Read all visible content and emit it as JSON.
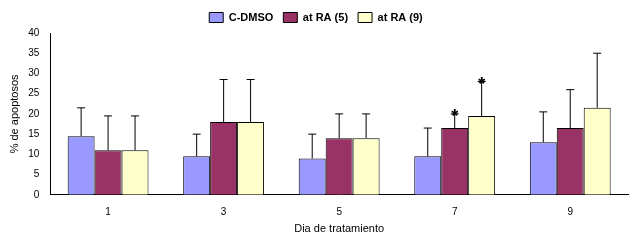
{
  "chart_data": {
    "type": "bar",
    "x_label": "Dia de tratamiento",
    "y_label": "% de apoptosos",
    "categories": [
      "1",
      "3",
      "5",
      "7",
      "9"
    ],
    "series": [
      {
        "name": "C-DMSO",
        "color": "#9999ff",
        "values": [
          14.5,
          9.5,
          9,
          9.5,
          13
        ],
        "errors": [
          7,
          5.5,
          6,
          7,
          7.5
        ]
      },
      {
        "name": "at RA (5)",
        "color": "#993366",
        "values": [
          11,
          18,
          14,
          16.5,
          16.5
        ],
        "errors": [
          8.5,
          10.5,
          6,
          3.5,
          9.5
        ]
      },
      {
        "name": "at RA (9)",
        "color": "#ffffcc",
        "values": [
          11,
          18,
          14,
          19.5,
          21.5
        ],
        "errors": [
          8.5,
          10.5,
          6,
          8.5,
          13.5
        ]
      }
    ],
    "annotations": [
      {
        "text": "*",
        "category": "7",
        "series": "at RA (5)"
      },
      {
        "text": "*",
        "category": "7",
        "series": "at RA (9)"
      }
    ],
    "ylim": [
      0,
      40
    ],
    "yticks": [
      0,
      5,
      10,
      15,
      20,
      25,
      30,
      35,
      40
    ],
    "grid": false,
    "legend": "top"
  }
}
